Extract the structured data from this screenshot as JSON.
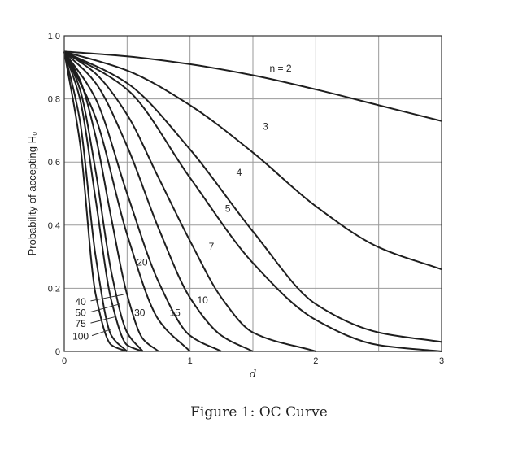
{
  "caption": {
    "figure_label": "Figure 1:",
    "title": "OC Curve"
  },
  "chart_data": {
    "type": "line",
    "xlabel": "d",
    "ylabel": "Probability of accepting H₀",
    "xlim": [
      0,
      3
    ],
    "ylim": [
      0,
      1.0
    ],
    "x_ticks": [
      "0",
      "1",
      "2",
      "3"
    ],
    "y_ticks": [
      "0",
      "0.2",
      "0.4",
      "0.6",
      "0.8",
      "1.0"
    ],
    "grid": true,
    "series": [
      {
        "name": "n = 2",
        "label_at": [
          1.72,
          0.895
        ],
        "x": [
          0,
          0.5,
          1,
          1.5,
          2,
          2.5,
          3
        ],
        "values": [
          0.95,
          0.935,
          0.91,
          0.875,
          0.83,
          0.78,
          0.73
        ]
      },
      {
        "name": "3",
        "label_at": [
          1.6,
          0.71
        ],
        "x": [
          0,
          0.5,
          1,
          1.5,
          2,
          2.5,
          3
        ],
        "values": [
          0.95,
          0.89,
          0.78,
          0.63,
          0.46,
          0.33,
          0.26
        ]
      },
      {
        "name": "4",
        "label_at": [
          1.39,
          0.565
        ],
        "x": [
          0,
          0.5,
          1,
          1.5,
          2,
          2.5,
          3
        ],
        "values": [
          0.95,
          0.85,
          0.64,
          0.38,
          0.15,
          0.06,
          0.03
        ]
      },
      {
        "name": "5",
        "label_at": [
          1.3,
          0.45
        ],
        "x": [
          0,
          0.5,
          1,
          1.5,
          2,
          2.5,
          3
        ],
        "values": [
          0.95,
          0.83,
          0.55,
          0.28,
          0.1,
          0.02,
          0.0
        ]
      },
      {
        "name": "7",
        "label_at": [
          1.17,
          0.33
        ],
        "x": [
          0,
          0.25,
          0.5,
          0.75,
          1,
          1.25,
          1.5,
          2
        ],
        "values": [
          0.95,
          0.88,
          0.75,
          0.55,
          0.35,
          0.17,
          0.06,
          0.0
        ]
      },
      {
        "name": "10",
        "label_at": [
          1.1,
          0.16
        ],
        "x": [
          0,
          0.25,
          0.5,
          0.75,
          1,
          1.25,
          1.5
        ],
        "values": [
          0.95,
          0.85,
          0.65,
          0.39,
          0.17,
          0.05,
          0.0
        ]
      },
      {
        "name": "15",
        "label_at": [
          0.88,
          0.12
        ],
        "x": [
          0,
          0.25,
          0.5,
          0.75,
          1,
          1.25
        ],
        "values": [
          0.95,
          0.8,
          0.5,
          0.22,
          0.05,
          0.0
        ]
      },
      {
        "name": "20",
        "label_at": [
          0.62,
          0.28
        ],
        "x": [
          0,
          0.25,
          0.5,
          0.75,
          1
        ],
        "values": [
          0.95,
          0.74,
          0.37,
          0.1,
          0.0
        ]
      },
      {
        "name": "30",
        "label_at": [
          0.6,
          0.12
        ],
        "x": [
          0,
          0.125,
          0.25,
          0.375,
          0.5,
          0.625,
          0.75
        ],
        "values": [
          0.95,
          0.86,
          0.68,
          0.42,
          0.18,
          0.04,
          0.0
        ]
      },
      {
        "name": "40",
        "label_at": [
          0.13,
          0.155
        ],
        "x": [
          0,
          0.125,
          0.25,
          0.375,
          0.5,
          0.625
        ],
        "values": [
          0.95,
          0.83,
          0.57,
          0.25,
          0.06,
          0.0
        ]
      },
      {
        "name": "50",
        "label_at": [
          0.13,
          0.12
        ],
        "x": [
          0,
          0.125,
          0.25,
          0.375,
          0.5,
          0.625
        ],
        "values": [
          0.95,
          0.8,
          0.48,
          0.16,
          0.02,
          0.0
        ]
      },
      {
        "name": "75",
        "label_at": [
          0.13,
          0.085
        ],
        "x": [
          0,
          0.125,
          0.25,
          0.375,
          0.5
        ],
        "values": [
          0.95,
          0.73,
          0.3,
          0.05,
          0.0
        ]
      },
      {
        "name": "100",
        "label_at": [
          0.13,
          0.045
        ],
        "x": [
          0,
          0.125,
          0.25,
          0.375,
          0.5
        ],
        "values": [
          0.95,
          0.66,
          0.18,
          0.02,
          0.0
        ]
      }
    ]
  }
}
